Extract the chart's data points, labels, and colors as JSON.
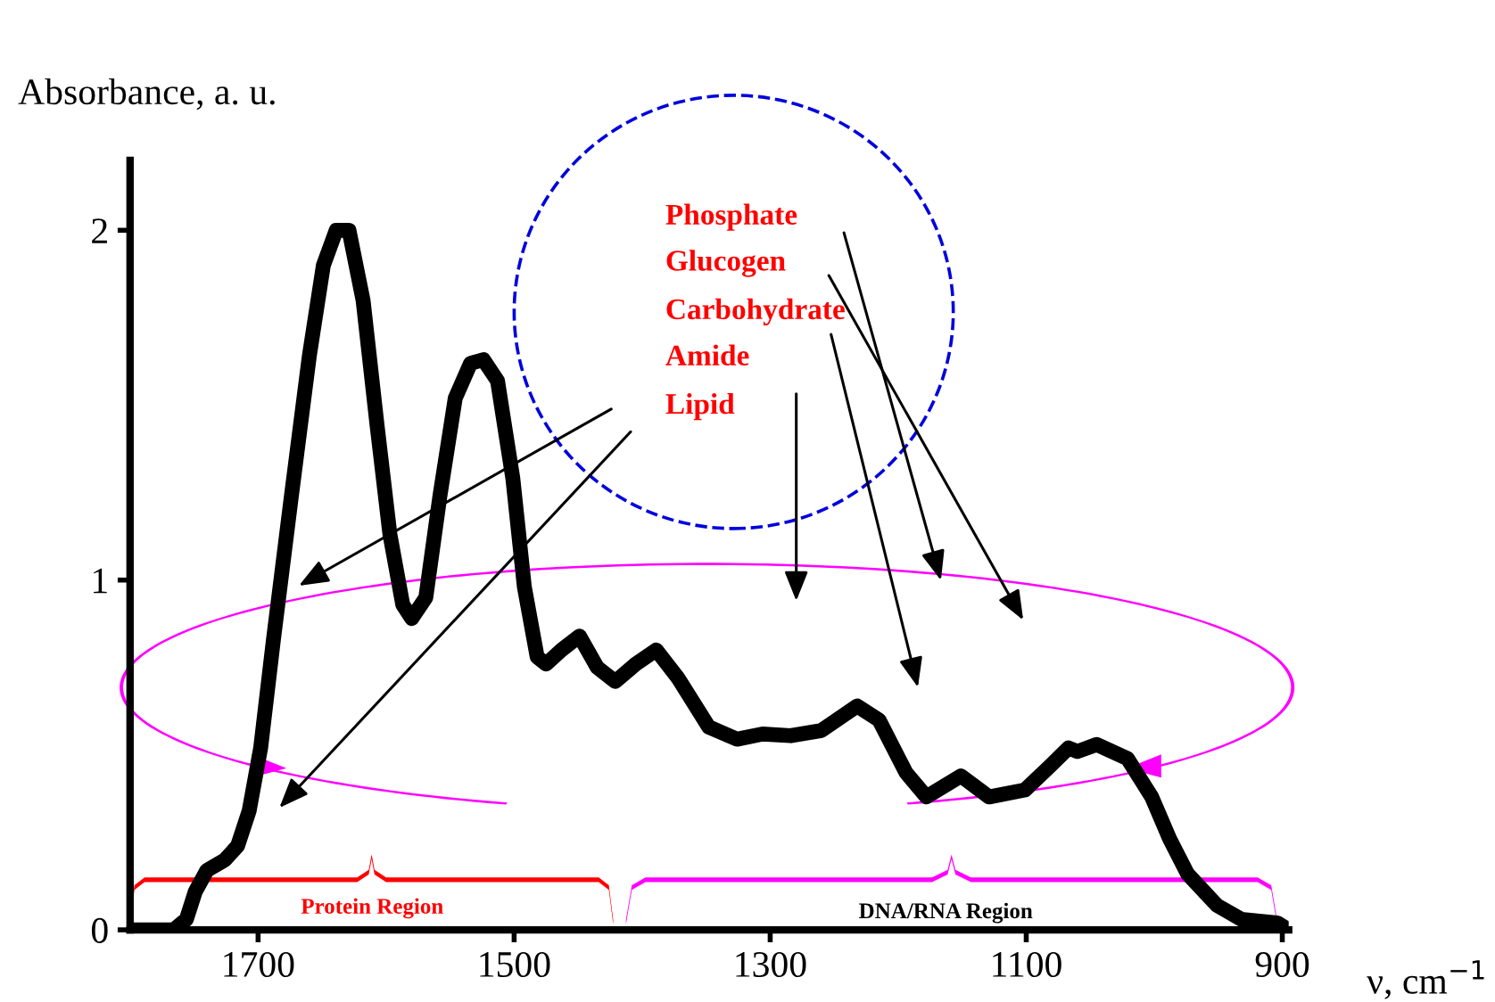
{
  "chart_data": {
    "type": "line",
    "xlabel": "ν, cm$^{−1}$",
    "ylabel": "Absorbance, a. u.",
    "x": [
      1800,
      1766,
      1756,
      1749,
      1740,
      1726,
      1716,
      1707,
      1698,
      1688,
      1674,
      1660,
      1649,
      1639,
      1629,
      1618,
      1607,
      1597,
      1587,
      1580,
      1569,
      1558,
      1546,
      1534,
      1524,
      1513,
      1501,
      1492,
      1482,
      1475,
      1463,
      1449,
      1435,
      1421,
      1405,
      1389,
      1372,
      1348,
      1326,
      1306,
      1284,
      1260,
      1232,
      1215,
      1194,
      1178,
      1151,
      1129,
      1101,
      1081,
      1067,
      1060,
      1045,
      1021,
      1002,
      988,
      974,
      951,
      932,
      904,
      895
    ],
    "series": [
      {
        "color": "#000000",
        "values": [
          0,
          0,
          0.03,
          0.11,
          0.17,
          0.2,
          0.24,
          0.34,
          0.52,
          0.83,
          1.24,
          1.64,
          1.9,
          2.0,
          2.0,
          1.8,
          1.44,
          1.13,
          0.93,
          0.89,
          0.95,
          1.24,
          1.52,
          1.62,
          1.63,
          1.57,
          1.29,
          0.98,
          0.78,
          0.76,
          0.8,
          0.84,
          0.75,
          0.71,
          0.76,
          0.8,
          0.72,
          0.58,
          0.545,
          0.56,
          0.555,
          0.57,
          0.64,
          0.6,
          0.45,
          0.38,
          0.44,
          0.38,
          0.4,
          0.47,
          0.52,
          0.51,
          0.53,
          0.49,
          0.38,
          0.26,
          0.16,
          0.07,
          0.03,
          0.02,
          0
        ]
      }
    ],
    "xlim": [
      1800,
      895
    ],
    "xticks": [
      1700,
      1500,
      1300,
      1100,
      900
    ],
    "ylim": [
      0,
      2.2
    ],
    "yticks": [
      0,
      1,
      2
    ],
    "grid": false,
    "legend": false,
    "line_style": "solid",
    "marker": "none",
    "annotations": [
      "Phosphate",
      "Glucogen",
      "Carbohydrate",
      "Amide",
      "Lipid",
      "Protein Region",
      "DNA/RNA Region"
    ]
  }
}
